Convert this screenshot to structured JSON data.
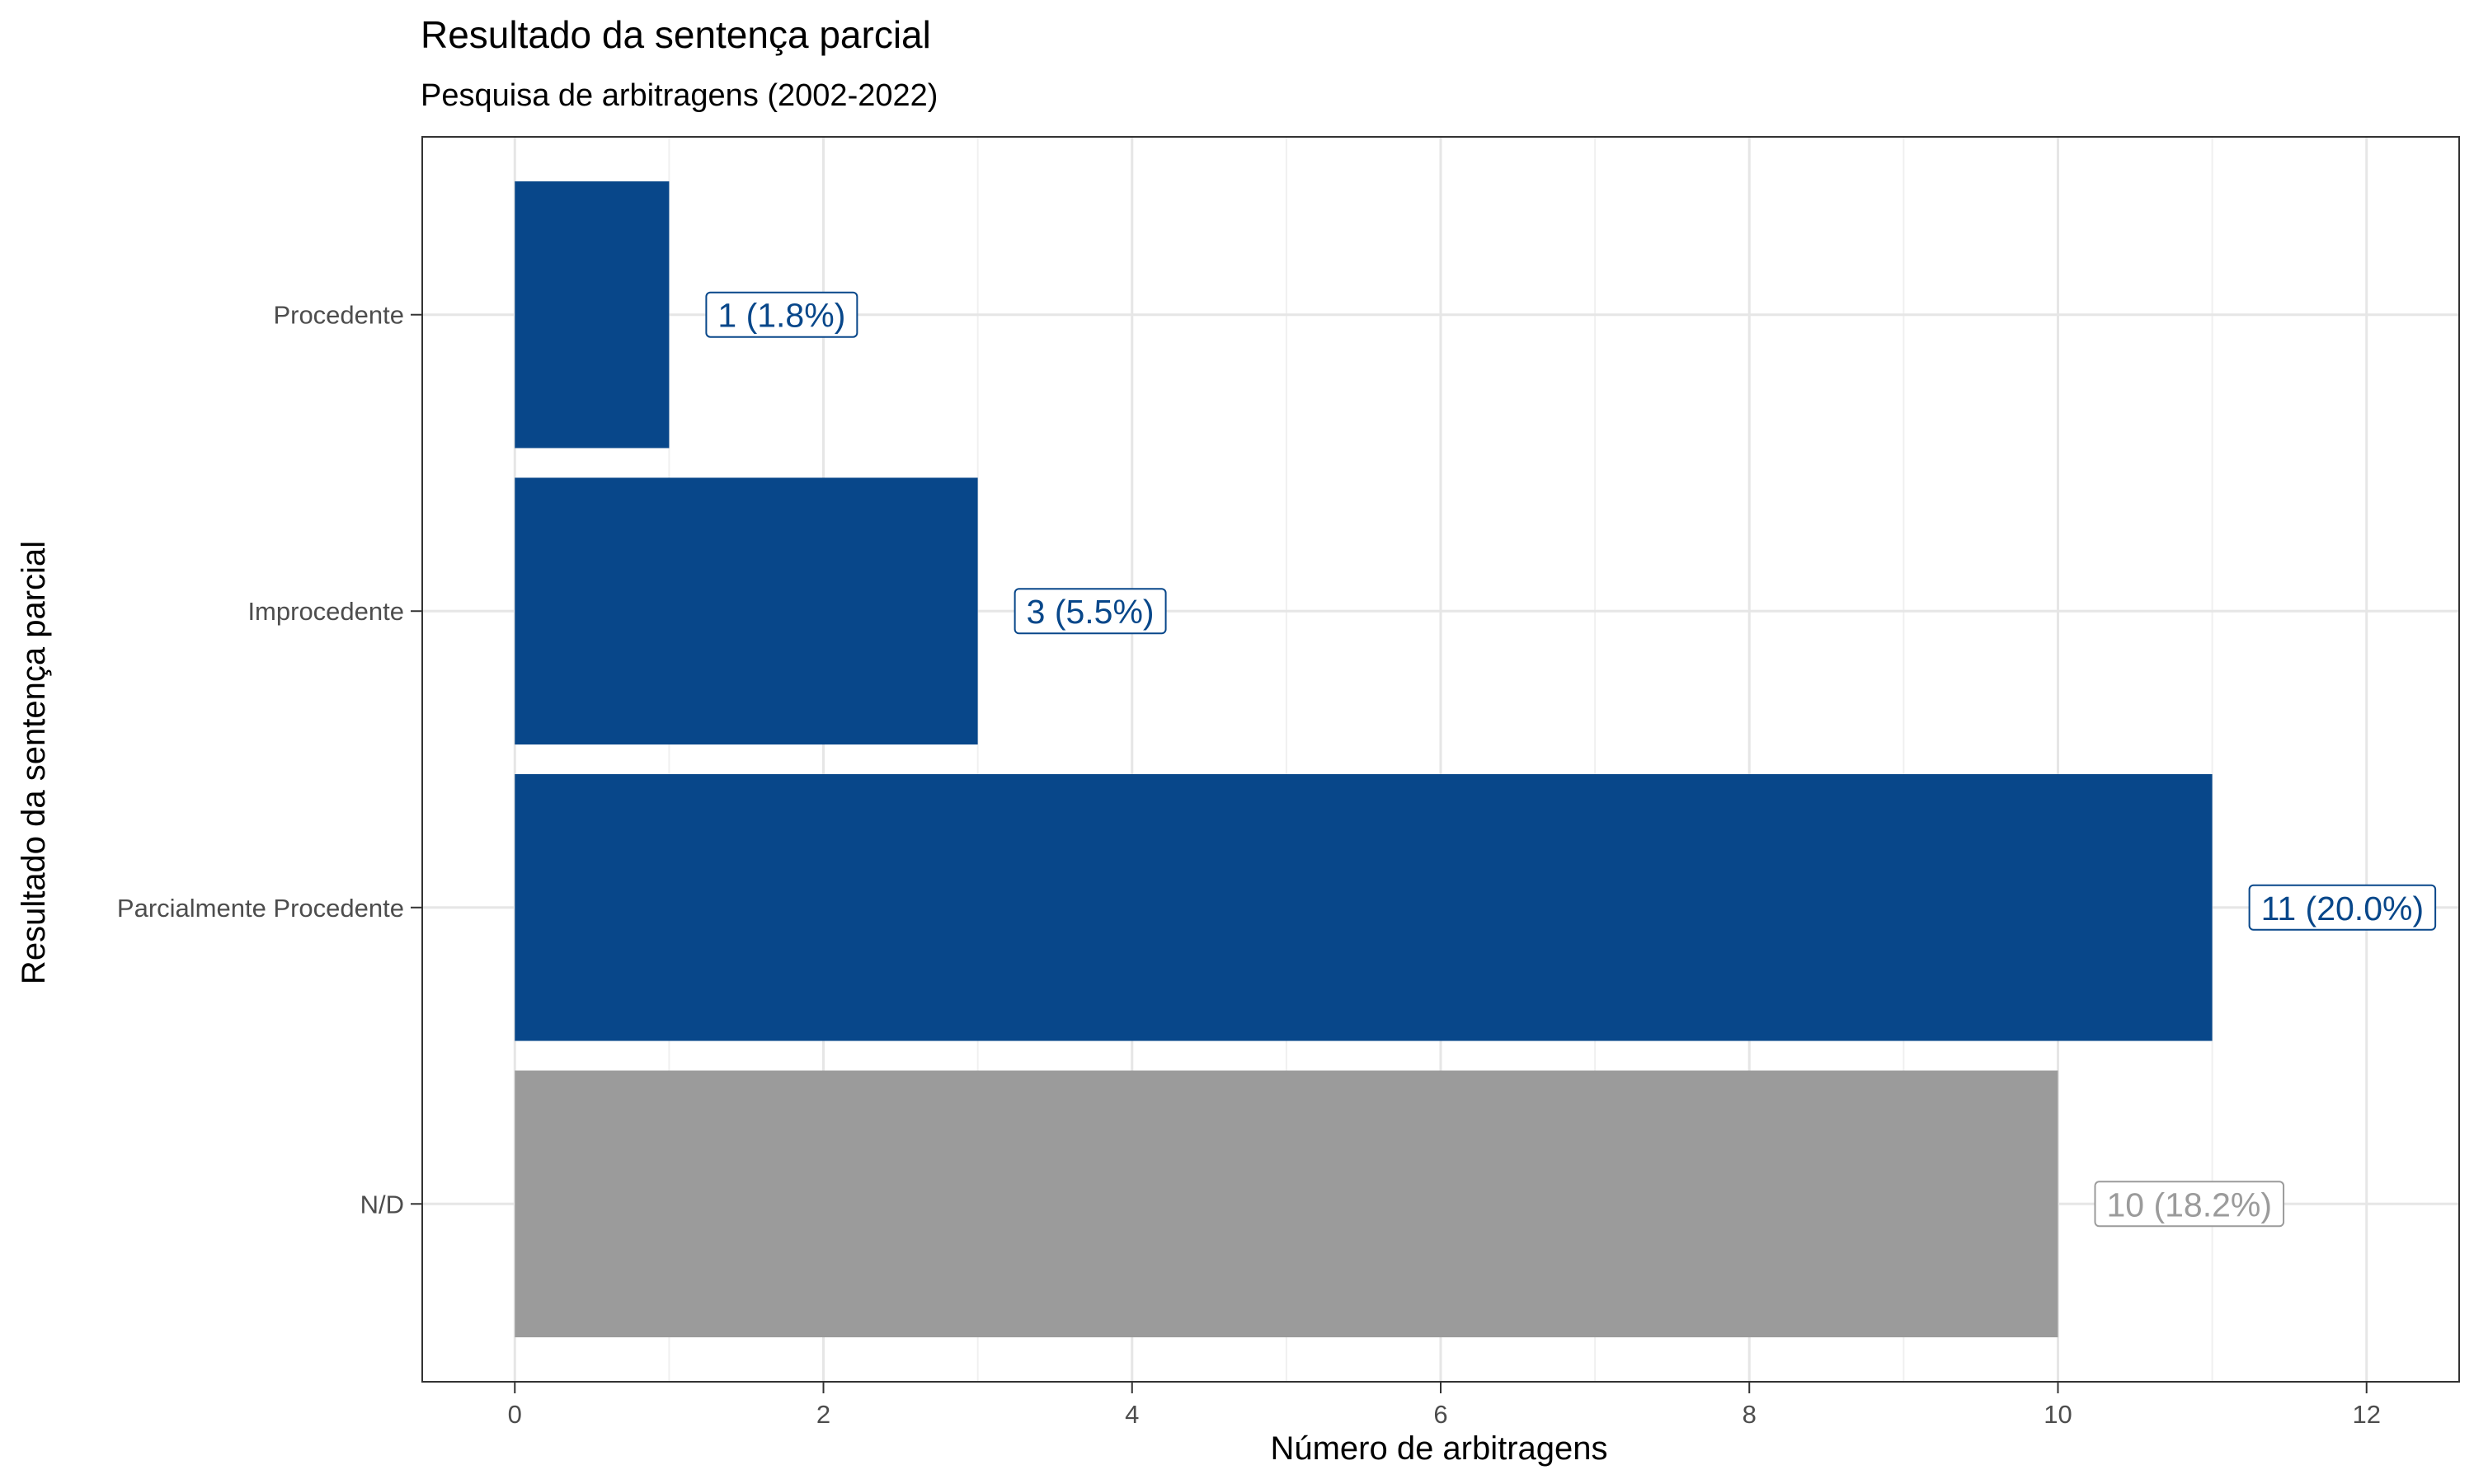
{
  "chart_data": {
    "type": "bar",
    "orientation": "horizontal",
    "title": "Resultado da sentença parcial",
    "subtitle": "Pesquisa de arbitragens (2002-2022)",
    "xlabel": "Número de arbitragens",
    "ylabel": "Resultado da sentença parcial",
    "categories": [
      "Procedente",
      "Improcedente",
      "Parcialmente Procedente",
      "N/D"
    ],
    "values": [
      1,
      3,
      11,
      10
    ],
    "labels": [
      "1 (1.8%)",
      "3 (5.5%)",
      "11 (20.0%)",
      "10 (18.2%)"
    ],
    "colors": [
      "#08478a",
      "#08478a",
      "#08478a",
      "#9b9b9b"
    ],
    "xlim": [
      -0.6,
      12.6
    ],
    "xticks": [
      0,
      2,
      4,
      6,
      8,
      10,
      12
    ],
    "grid": true,
    "legend": "none"
  }
}
